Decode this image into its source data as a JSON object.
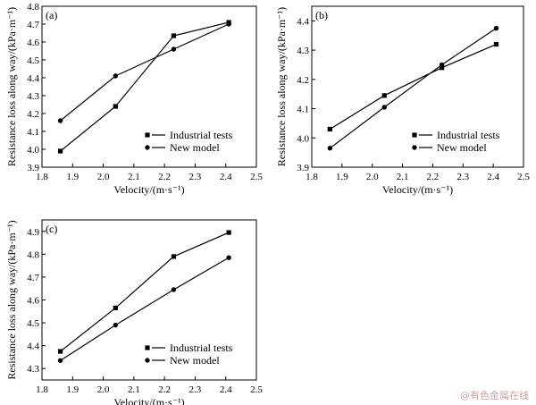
{
  "watermark": "@有色金属在线",
  "colors": {
    "line": "#000000",
    "background": "#ffffff",
    "watermark": "#c9a3a3"
  },
  "chart_data": [
    {
      "type": "line",
      "panel_label": "(a)",
      "xlabel": "Velocity/(m·s⁻¹)",
      "ylabel": "Resistance loss along way/(kPa·m⁻¹)",
      "xlim": [
        1.8,
        2.5
      ],
      "ylim": [
        3.9,
        4.8
      ],
      "xticks": [
        1.8,
        1.9,
        2.0,
        2.1,
        2.2,
        2.3,
        2.4,
        2.5
      ],
      "yticks": [
        3.9,
        4.0,
        4.1,
        4.2,
        4.3,
        4.4,
        4.5,
        4.6,
        4.7,
        4.8
      ],
      "ytick_decimals": 1,
      "grid": false,
      "legend_position": "bottom-right",
      "x": [
        1.86,
        2.04,
        2.23,
        2.41
      ],
      "series": [
        {
          "name": "Industrial tests",
          "marker": "square",
          "values": [
            3.99,
            4.24,
            4.635,
            4.71
          ]
        },
        {
          "name": "New model",
          "marker": "circle",
          "values": [
            4.16,
            4.41,
            4.56,
            4.7
          ]
        }
      ]
    },
    {
      "type": "line",
      "panel_label": "(b)",
      "xlabel": "Velocity/(m·s⁻¹)",
      "ylabel": "Resistance loss along way/(kPa·m⁻¹)",
      "xlim": [
        1.8,
        2.5
      ],
      "ylim": [
        3.9,
        4.45
      ],
      "xticks": [
        1.8,
        1.9,
        2.0,
        2.1,
        2.2,
        2.3,
        2.4,
        2.5
      ],
      "yticks": [
        3.9,
        4.0,
        4.1,
        4.2,
        4.3,
        4.4
      ],
      "ytick_decimals": 1,
      "grid": false,
      "legend_position": "bottom-right",
      "x": [
        1.86,
        2.04,
        2.23,
        2.41
      ],
      "series": [
        {
          "name": "Industrial tests",
          "marker": "square",
          "values": [
            4.03,
            4.145,
            4.24,
            4.32
          ]
        },
        {
          "name": "New model",
          "marker": "circle",
          "values": [
            3.965,
            4.105,
            4.25,
            4.375
          ]
        }
      ]
    },
    {
      "type": "line",
      "panel_label": "(c)",
      "xlabel": "Velocity/(m·s⁻¹)",
      "ylabel": "Resistance loss along way/(kPa·m⁻¹)",
      "xlim": [
        1.8,
        2.5
      ],
      "ylim": [
        4.25,
        4.95
      ],
      "xticks": [
        1.8,
        1.9,
        2.0,
        2.1,
        2.2,
        2.3,
        2.4,
        2.5
      ],
      "yticks": [
        4.3,
        4.4,
        4.5,
        4.6,
        4.7,
        4.8,
        4.9
      ],
      "ytick_decimals": 1,
      "grid": false,
      "legend_position": "bottom-right",
      "x": [
        1.86,
        2.04,
        2.23,
        2.41
      ],
      "series": [
        {
          "name": "Industrial tests",
          "marker": "square",
          "values": [
            4.375,
            4.565,
            4.79,
            4.895
          ]
        },
        {
          "name": "New model",
          "marker": "circle",
          "values": [
            4.335,
            4.49,
            4.645,
            4.785
          ]
        }
      ]
    }
  ]
}
